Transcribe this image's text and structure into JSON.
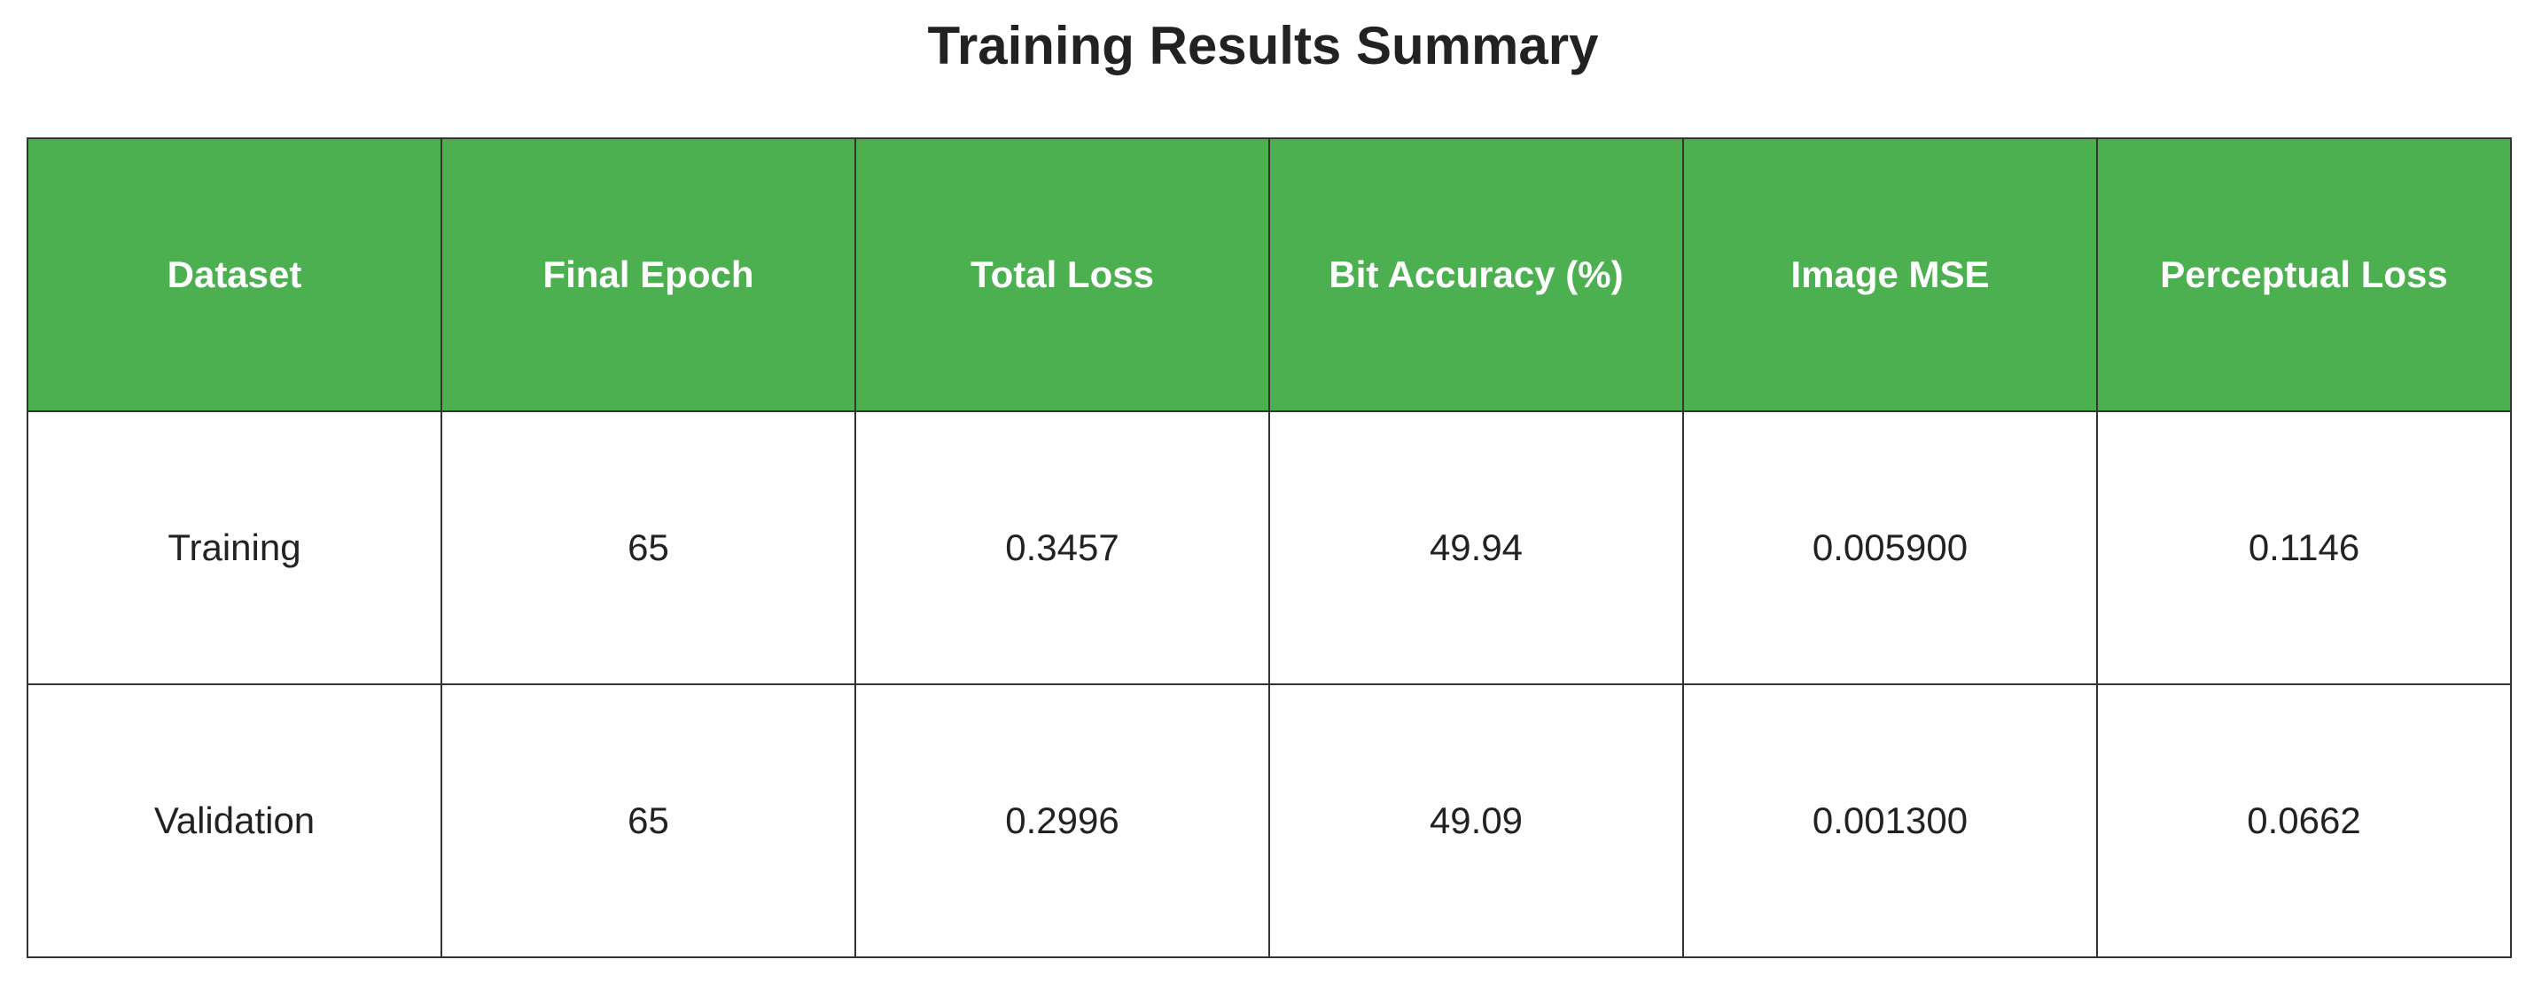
{
  "chart_data": {
    "type": "table",
    "title": "Training Results Summary",
    "columns": [
      "Dataset",
      "Final Epoch",
      "Total Loss",
      "Bit Accuracy (%)",
      "Image MSE",
      "Perceptual Loss"
    ],
    "rows": [
      [
        "Training",
        "65",
        "0.3457",
        "49.94",
        "0.005900",
        "0.1146"
      ],
      [
        "Validation",
        "65",
        "0.2996",
        "49.09",
        "0.001300",
        "0.0662"
      ]
    ],
    "header_color": "#4caf50",
    "header_text_color": "#ffffff",
    "border_color": "#333333"
  }
}
